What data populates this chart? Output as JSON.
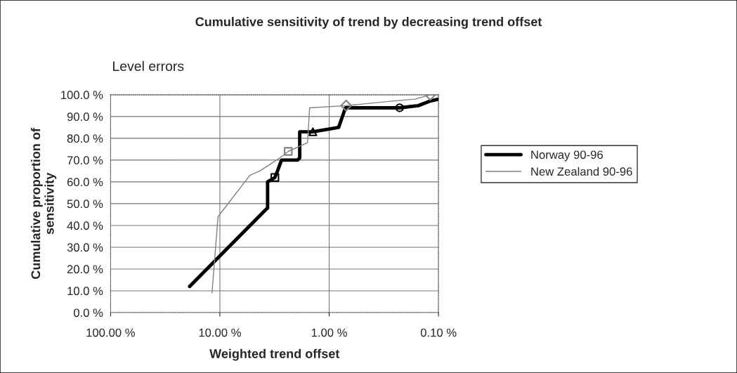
{
  "chart_data": {
    "type": "line",
    "title": "Cumulative sensitivity of trend by decreasing trend offset",
    "subtitle": "Level errors",
    "xlabel": "Weighted trend offset",
    "ylabel": "Cumulative proportion of\nsensitivity",
    "log": "x",
    "xlim": [
      100,
      0.1
    ],
    "xticks": [
      {
        "value": 100,
        "label": "100.00 %"
      },
      {
        "value": 10,
        "label": "10.00 %"
      },
      {
        "value": 1,
        "label": "1.00 %"
      },
      {
        "value": 0.1,
        "label": "0.10 %"
      }
    ],
    "ylim": [
      0,
      100
    ],
    "yticks": [
      {
        "value": 0,
        "label": "0.0 %"
      },
      {
        "value": 10,
        "label": "10.0 %"
      },
      {
        "value": 20,
        "label": "20.0 %"
      },
      {
        "value": 30,
        "label": "30.0 %"
      },
      {
        "value": 40,
        "label": "40.0 %"
      },
      {
        "value": 50,
        "label": "50.0 %"
      },
      {
        "value": 60,
        "label": "60.0 %"
      },
      {
        "value": 70,
        "label": "70.0 %"
      },
      {
        "value": 80,
        "label": "80.0 %"
      },
      {
        "value": 90,
        "label": "90.0 %"
      },
      {
        "value": 100,
        "label": "100.0 %"
      }
    ],
    "grid": true,
    "legend": "right",
    "marker": "none",
    "line_style": "solid",
    "series": [
      {
        "name": "Norway 90-96",
        "color": "#000000",
        "x": [
          18.9,
          3.85,
          3.66,
          3.66,
          3.14,
          2.97,
          2.73,
          1.95,
          1.86,
          1.86,
          1.41,
          0.82,
          0.71,
          0.227,
          0.153,
          0.121,
          0.1
        ],
        "values": [
          12,
          47,
          48,
          60,
          62,
          65,
          70,
          70,
          71,
          83,
          83,
          85,
          94,
          94,
          95,
          97,
          98
        ]
      },
      {
        "name": "New Zealand 90-96",
        "color": "#808080",
        "x": [
          11.8,
          10.4,
          5.32,
          4.31,
          2.83,
          2.37,
          1.58,
          1.51,
          0.7,
          0.274,
          0.164,
          0.119,
          0.1
        ],
        "values": [
          9,
          44,
          63,
          65,
          71,
          74,
          78,
          94,
          95,
          97,
          98,
          100,
          100
        ]
      },
      {
        "type": "scatter",
        "color": "#000000",
        "marker": "square",
        "x": [
          3.14
        ],
        "values": [
          62
        ]
      },
      {
        "type": "scatter",
        "color": "#000000",
        "marker": "triangle",
        "x": [
          1.41
        ],
        "values": [
          83
        ]
      },
      {
        "type": "scatter",
        "color": "#000000",
        "marker": "circle",
        "x": [
          0.227
        ],
        "values": [
          94
        ]
      },
      {
        "type": "scatter",
        "color": "#808080",
        "marker": "square",
        "x": [
          2.37
        ],
        "values": [
          74
        ]
      },
      {
        "type": "scatter",
        "color": "#808080",
        "marker": "diamond",
        "x": [
          0.7,
          0.119
        ],
        "values": [
          95,
          100
        ]
      }
    ]
  }
}
